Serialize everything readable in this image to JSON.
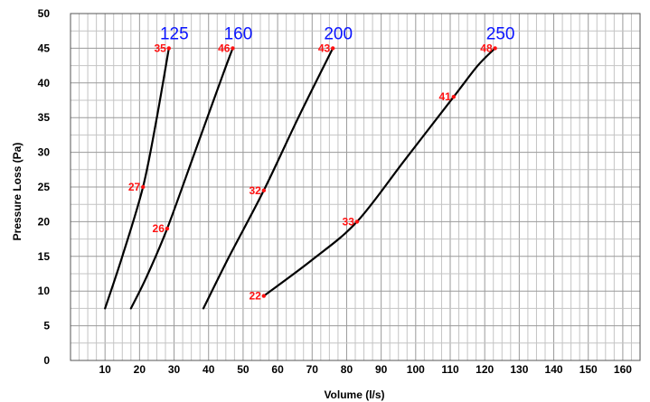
{
  "chart_data": {
    "type": "line",
    "title": "",
    "xlabel": "Volume (l/s)",
    "ylabel": "Pressure Loss (Pa)",
    "xlim": [
      0,
      165
    ],
    "ylim": [
      0,
      50
    ],
    "x_ticks": [
      10,
      20,
      30,
      40,
      50,
      60,
      70,
      80,
      90,
      100,
      110,
      120,
      130,
      140,
      150,
      160
    ],
    "y_ticks": [
      0,
      5,
      10,
      15,
      20,
      25,
      30,
      35,
      40,
      45,
      50
    ],
    "x_minor_step": 2.5,
    "grid": true,
    "line_color": "#000000",
    "series_label_color": "#0a14ff",
    "point_label_color": "#ff1010",
    "series": [
      {
        "name": "125",
        "x": [
          10,
          15,
          21,
          25,
          28.5
        ],
        "y": [
          7.5,
          15,
          25,
          35,
          45
        ],
        "labeled_points": [
          {
            "x": 21,
            "y": 25,
            "label": "27"
          },
          {
            "x": 28.5,
            "y": 45,
            "label": "35"
          }
        ]
      },
      {
        "name": "160",
        "x": [
          17.5,
          22,
          28,
          36,
          44,
          47
        ],
        "y": [
          7.5,
          12,
          19,
          30,
          41,
          45
        ],
        "labeled_points": [
          {
            "x": 28,
            "y": 19,
            "label": "26"
          },
          {
            "x": 47,
            "y": 45,
            "label": "46"
          }
        ]
      },
      {
        "name": "200",
        "x": [
          38.5,
          46,
          56,
          66,
          76
        ],
        "y": [
          7.5,
          15,
          24.5,
          35,
          45
        ],
        "labeled_points": [
          {
            "x": 56,
            "y": 24.5,
            "label": "32"
          },
          {
            "x": 76,
            "y": 45,
            "label": "43"
          }
        ]
      },
      {
        "name": "250",
        "x": [
          56,
          70,
          83,
          97,
          111,
          118,
          123
        ],
        "y": [
          9.3,
          14.5,
          20,
          29,
          38,
          42.5,
          45
        ],
        "labeled_points": [
          {
            "x": 56,
            "y": 9.3,
            "label": "22"
          },
          {
            "x": 83,
            "y": 20,
            "label": "33"
          },
          {
            "x": 111,
            "y": 38,
            "label": "41"
          },
          {
            "x": 123,
            "y": 45,
            "label": "48"
          }
        ]
      }
    ]
  }
}
